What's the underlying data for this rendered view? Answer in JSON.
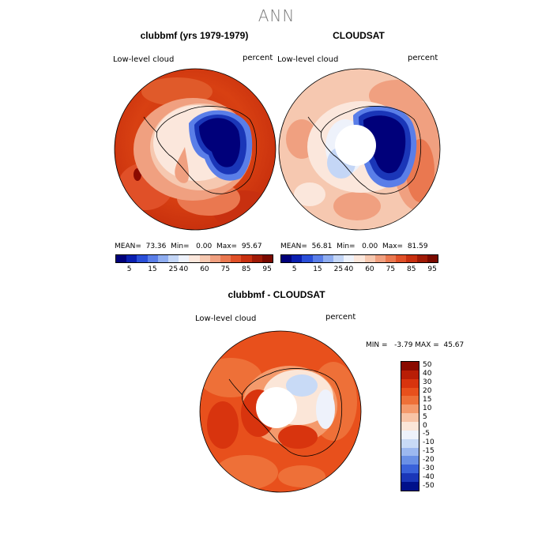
{
  "title": "ANN",
  "panels": [
    {
      "id": "clubbmf",
      "header": "clubbmf (yrs 1979-1979)",
      "left_label": "Low-level cloud",
      "right_label": "percent",
      "stats": "MEAN=  73.36  Min=   0.00  Max=  95.67"
    },
    {
      "id": "cloudsat",
      "header": "CLOUDSAT",
      "left_label": "Low-level cloud",
      "right_label": "percent",
      "stats": "MEAN=  56.81  Min=   0.00  Max=  81.59"
    },
    {
      "id": "diff",
      "header": "clubbmf - CLOUDSAT",
      "left_label": "Low-level cloud",
      "right_label": "percent",
      "stats": "MIN =   -3.79 MAX =  45.67"
    }
  ],
  "colorbar_top": {
    "ticks": [
      "5",
      "15",
      "25",
      "40",
      "60",
      "75",
      "85",
      "95"
    ],
    "colors": [
      "#00007a",
      "#0a1fb0",
      "#2a4fd8",
      "#5a7ee8",
      "#8fadf0",
      "#c4d6f6",
      "#eef2fb",
      "#fbe7dc",
      "#f6c8b0",
      "#f0a080",
      "#ea7850",
      "#e05028",
      "#c83010",
      "#a01a06",
      "#7a0a00"
    ]
  },
  "colorbar_diff": {
    "ticks": [
      "50",
      "40",
      "30",
      "20",
      "15",
      "10",
      "5",
      "0",
      "-5",
      "-10",
      "-15",
      "-20",
      "-30",
      "-40",
      "-50"
    ],
    "colors": [
      "#8a0a00",
      "#b81e06",
      "#d8340e",
      "#e8501c",
      "#ee7038",
      "#f49a6c",
      "#f8c4a6",
      "#fbe6d8",
      "#eef2fb",
      "#c8daf6",
      "#9cb8f0",
      "#6a90e6",
      "#3a62da",
      "#1a36b8",
      "#00108a"
    ]
  }
}
